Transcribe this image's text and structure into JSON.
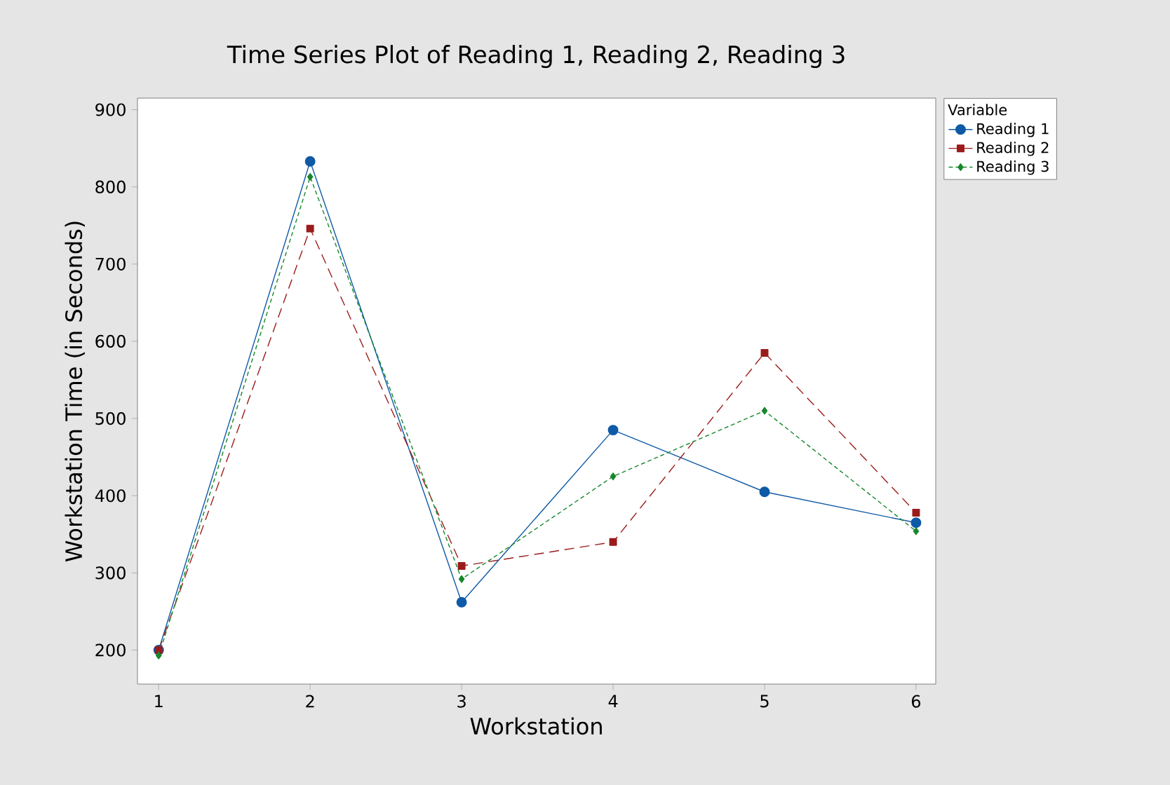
{
  "chart_data": {
    "type": "line",
    "title": "Time Series Plot of Reading 1, Reading 2, Reading 3",
    "xlabel": "Workstation",
    "ylabel": "Workstation Time (in Seconds)",
    "legend_title": "Variable",
    "x": [
      1,
      2,
      3,
      4,
      5,
      6
    ],
    "series": [
      {
        "name": "Reading 1",
        "color": "#0e5aa7",
        "marker": "circle",
        "line_style": "solid",
        "values": [
          200,
          833,
          262,
          485,
          405,
          365
        ]
      },
      {
        "name": "Reading 2",
        "color": "#9b1b1b",
        "marker": "square",
        "line_style": "dashed",
        "values": [
          200,
          746,
          309,
          340,
          585,
          378
        ]
      },
      {
        "name": "Reading 3",
        "color": "#17872b",
        "marker": "diamond",
        "line_style": "dotted",
        "values": [
          193,
          813,
          292,
          425,
          510,
          354
        ]
      }
    ],
    "xlim": [
      0.86,
      6.13
    ],
    "ylim": [
      156,
      915
    ],
    "xticks": [
      1,
      2,
      3,
      4,
      5,
      6
    ],
    "yticks": [
      200,
      300,
      400,
      500,
      600,
      700,
      800,
      900
    ],
    "grid": false,
    "legend": "top right"
  }
}
